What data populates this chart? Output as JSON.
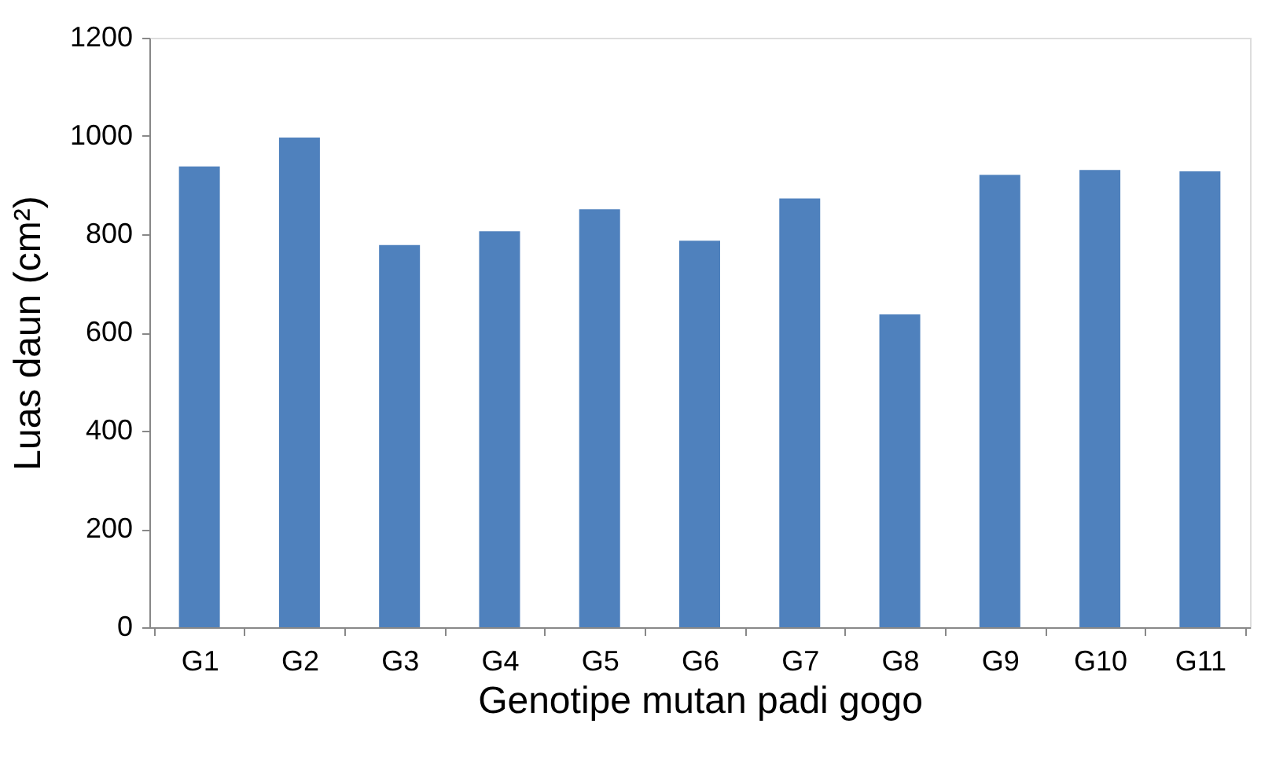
{
  "chart_data": {
    "type": "bar",
    "xlabel": "Genotipe mutan padi gogo",
    "ylabel": "Luas daun (cm²)",
    "categories": [
      "G1",
      "G2",
      "G3",
      "G4",
      "G5",
      "G6",
      "G7",
      "G8",
      "G9",
      "G10",
      "G11"
    ],
    "values": [
      938,
      997,
      778,
      806,
      851,
      787,
      873,
      637,
      921,
      931,
      928
    ],
    "color": "#4f81bd",
    "ylim": [
      0,
      1200
    ],
    "yticks": [
      0,
      200,
      400,
      600,
      800,
      1000,
      1200
    ],
    "grid": false
  }
}
